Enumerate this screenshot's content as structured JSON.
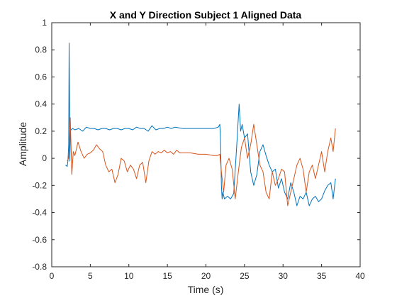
{
  "chart_data": {
    "type": "line",
    "title": "X and Y Direction Subject 1 Aligned Data",
    "xlabel": "Time (s)",
    "ylabel": "Amplitude",
    "xlim": [
      0,
      40
    ],
    "ylim": [
      -0.8,
      1
    ],
    "xticks": [
      "0",
      "5",
      "10",
      "15",
      "20",
      "25",
      "30",
      "35",
      "40"
    ],
    "yticks": [
      "-0.8",
      "-0.6",
      "-0.4",
      "-0.2",
      "0",
      "0.2",
      "0.4",
      "0.6",
      "0.8",
      "1"
    ],
    "grid": false,
    "legend": "none",
    "series": [
      {
        "color": "#0072BD",
        "x": [
          1.8,
          2.0,
          2.1,
          2.2,
          2.25,
          2.3,
          2.35,
          2.4,
          2.5,
          2.7,
          3.0,
          3.5,
          4.0,
          4.5,
          5.0,
          5.5,
          6.0,
          6.5,
          7.0,
          7.5,
          8.0,
          8.5,
          9.0,
          9.5,
          10.0,
          10.5,
          11.0,
          11.5,
          12.0,
          12.5,
          13.0,
          13.5,
          14.0,
          14.5,
          15.0,
          15.5,
          16.0,
          17.0,
          18.0,
          19.0,
          20.0,
          21.0,
          21.6,
          21.8,
          21.9,
          22.0,
          22.1,
          22.2,
          22.4,
          22.8,
          23.2,
          23.6,
          24.0,
          24.3,
          24.5,
          24.7,
          25.0,
          25.4,
          25.8,
          26.2,
          26.6,
          27.0,
          27.4,
          27.8,
          28.2,
          28.6,
          29.0,
          29.4,
          29.8,
          30.2,
          30.6,
          31.0,
          31.4,
          31.8,
          32.2,
          32.6,
          33.0,
          33.4,
          33.8,
          34.2,
          34.6,
          35.0,
          35.4,
          35.8,
          36.2,
          36.5,
          36.8
        ],
        "y": [
          -0.05,
          -0.06,
          -0.02,
          0.1,
          0.85,
          0.5,
          -0.02,
          0.2,
          0.21,
          0.22,
          0.21,
          0.22,
          0.2,
          0.23,
          0.22,
          0.22,
          0.21,
          0.22,
          0.22,
          0.21,
          0.22,
          0.22,
          0.21,
          0.22,
          0.22,
          0.21,
          0.23,
          0.22,
          0.22,
          0.2,
          0.24,
          0.21,
          0.22,
          0.22,
          0.23,
          0.22,
          0.23,
          0.22,
          0.22,
          0.22,
          0.22,
          0.22,
          0.23,
          0.25,
          0.1,
          -0.2,
          -0.3,
          -0.25,
          -0.3,
          -0.28,
          -0.3,
          -0.26,
          0.1,
          0.4,
          0.2,
          0.25,
          0.15,
          0.18,
          -0.1,
          -0.2,
          -0.12,
          0.05,
          0.1,
          0.02,
          -0.05,
          -0.1,
          -0.08,
          -0.22,
          -0.15,
          -0.25,
          -0.3,
          -0.18,
          -0.25,
          -0.35,
          -0.28,
          -0.3,
          -0.25,
          -0.35,
          -0.3,
          -0.28,
          -0.32,
          -0.3,
          -0.24,
          -0.2,
          -0.18,
          -0.3,
          -0.15
        ]
      },
      {
        "color": "#D95319",
        "x": [
          2.0,
          2.2,
          2.4,
          2.6,
          2.8,
          3.0,
          3.4,
          3.8,
          4.2,
          4.6,
          5.0,
          5.4,
          5.8,
          6.2,
          6.6,
          7.0,
          7.4,
          7.8,
          8.2,
          8.6,
          9.0,
          9.4,
          9.8,
          10.2,
          10.6,
          11.0,
          11.4,
          11.8,
          12.2,
          12.6,
          13.0,
          13.4,
          13.8,
          14.2,
          14.6,
          15.0,
          15.4,
          15.8,
          16.2,
          16.6,
          17.0,
          18.0,
          19.0,
          20.0,
          21.0,
          21.5,
          21.8,
          22.0,
          22.3,
          22.6,
          23.0,
          23.4,
          23.8,
          24.2,
          24.6,
          25.0,
          25.4,
          25.8,
          26.2,
          26.6,
          27.0,
          27.4,
          27.8,
          28.2,
          28.6,
          29.0,
          29.4,
          29.8,
          30.2,
          30.6,
          31.0,
          31.4,
          31.8,
          32.2,
          32.6,
          33.0,
          33.4,
          33.8,
          34.2,
          34.6,
          35.0,
          35.4,
          35.8,
          36.2,
          36.5,
          36.8
        ],
        "y": [
          -0.02,
          0.0,
          0.3,
          -0.12,
          0.05,
          0.02,
          0.12,
          0.05,
          0.0,
          0.03,
          0.04,
          0.06,
          0.1,
          0.07,
          0.05,
          -0.05,
          -0.1,
          -0.08,
          -0.18,
          -0.12,
          0.0,
          -0.02,
          -0.1,
          -0.05,
          -0.08,
          -0.15,
          -0.05,
          -0.03,
          -0.18,
          -0.02,
          0.05,
          0.03,
          0.05,
          0.04,
          0.06,
          0.04,
          0.05,
          0.03,
          0.06,
          0.04,
          0.04,
          0.04,
          0.03,
          0.03,
          0.02,
          0.02,
          0.03,
          -0.1,
          -0.25,
          -0.05,
          0.0,
          -0.08,
          -0.3,
          -0.1,
          0.08,
          0.15,
          0.0,
          0.1,
          0.25,
          0.1,
          -0.05,
          -0.1,
          -0.25,
          -0.3,
          -0.1,
          -0.2,
          -0.15,
          -0.08,
          -0.1,
          -0.35,
          -0.25,
          -0.15,
          -0.05,
          0.0,
          -0.08,
          -0.25,
          -0.1,
          -0.05,
          -0.15,
          -0.05,
          0.05,
          -0.1,
          0.05,
          0.15,
          0.05,
          0.22
        ]
      }
    ]
  }
}
